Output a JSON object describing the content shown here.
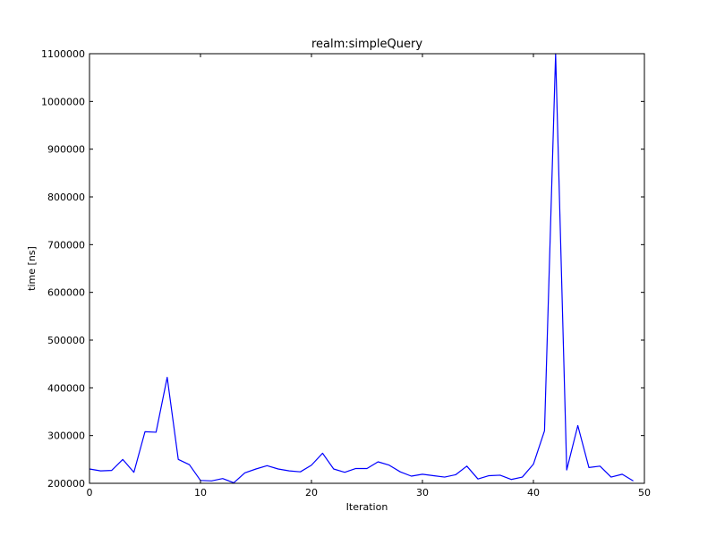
{
  "chart_data": {
    "type": "line",
    "title": "realm:simpleQuery",
    "xlabel": "Iteration",
    "ylabel": "time [ns]",
    "xlim": [
      0,
      50
    ],
    "ylim": [
      200000,
      1100000
    ],
    "xticks": [
      0,
      10,
      20,
      30,
      40,
      50
    ],
    "yticks": [
      200000,
      300000,
      400000,
      500000,
      600000,
      700000,
      800000,
      900000,
      1000000,
      1100000
    ],
    "grid": false,
    "series": [
      {
        "color": "#0000ff",
        "x": [
          0,
          1,
          2,
          3,
          4,
          5,
          6,
          7,
          8,
          9,
          10,
          11,
          12,
          13,
          14,
          15,
          16,
          17,
          18,
          19,
          20,
          21,
          22,
          23,
          24,
          25,
          26,
          27,
          28,
          29,
          30,
          31,
          32,
          33,
          34,
          35,
          36,
          37,
          38,
          39,
          40,
          41,
          42,
          43,
          44,
          45,
          46,
          47,
          48,
          49
        ],
        "values": [
          230000,
          226000,
          227000,
          250000,
          223000,
          308000,
          307000,
          422000,
          250000,
          239000,
          206000,
          205000,
          210000,
          201000,
          222000,
          230000,
          237000,
          230000,
          226000,
          224000,
          238000,
          263000,
          230000,
          223000,
          231000,
          231000,
          245000,
          238000,
          224000,
          215000,
          219000,
          216000,
          213000,
          218000,
          236000,
          209000,
          216000,
          217000,
          208000,
          213000,
          240000,
          310000,
          1100000,
          228000,
          321000,
          233000,
          236000,
          213000,
          219000,
          205000
        ]
      }
    ]
  }
}
